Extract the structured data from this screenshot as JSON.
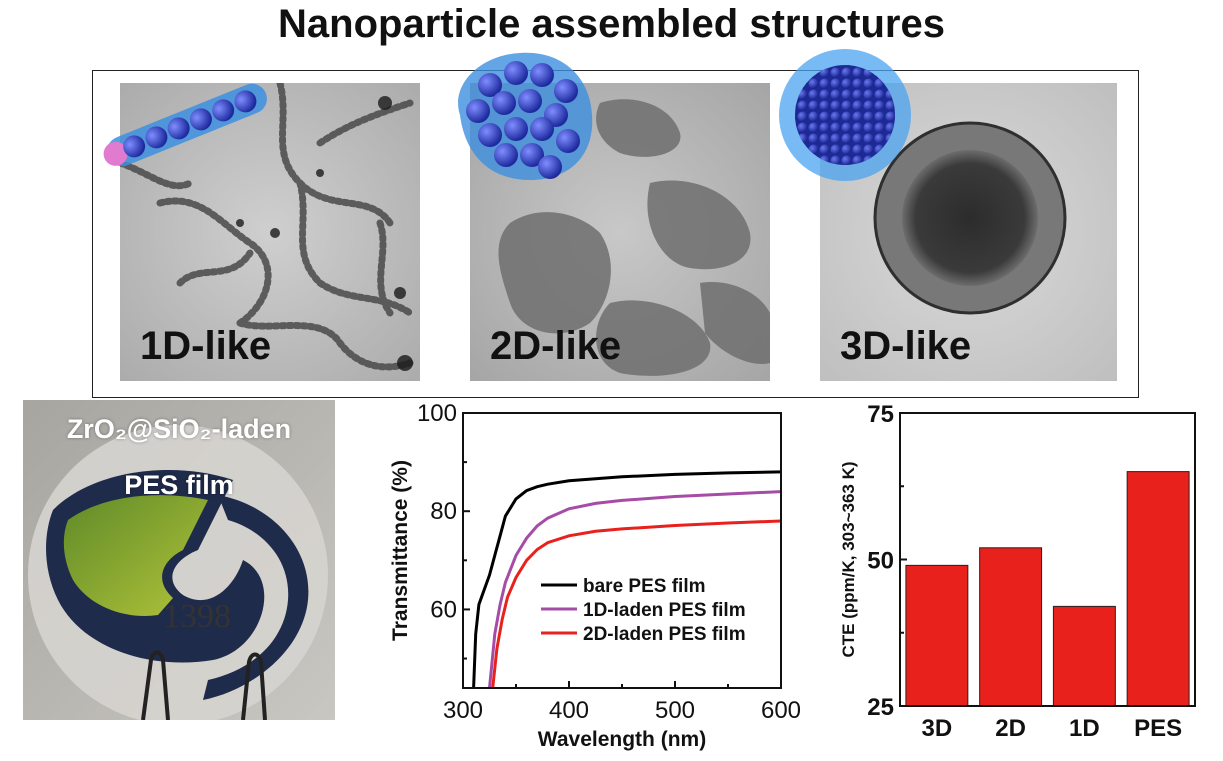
{
  "title": "Nanoparticle assembled structures",
  "panels": [
    {
      "label": "1D-like"
    },
    {
      "label": "2D-like"
    },
    {
      "label": "3D-like"
    }
  ],
  "photo": {
    "caption_line1": "ZrO₂@SiO₂-laden",
    "caption_line2": "PES film",
    "number": "1398"
  },
  "colors": {
    "bare": "#000000",
    "oneD": "#a64ca6",
    "twoD": "#e8211d",
    "bar": "#e8211d"
  },
  "chart_data": [
    {
      "type": "line",
      "xlabel": "Wavelength (nm)",
      "ylabel": "Transmittance (%)",
      "xlim": [
        300,
        600
      ],
      "ylim": [
        44,
        100
      ],
      "xticks": [
        300,
        400,
        500,
        600
      ],
      "yticks": [
        60,
        80,
        100
      ],
      "legend": "bottom-right",
      "series": [
        {
          "name": "bare PES film",
          "color": "#000000",
          "x": [
            310,
            312,
            315,
            320,
            325,
            330,
            335,
            340,
            350,
            360,
            370,
            380,
            400,
            450,
            500,
            550,
            600
          ],
          "y": [
            44,
            55,
            61,
            64,
            67,
            71,
            75,
            79,
            82.5,
            84.2,
            85,
            85.5,
            86.2,
            87,
            87.5,
            87.8,
            88
          ]
        },
        {
          "name": "1D-laden PES film",
          "color": "#a64ca6",
          "x": [
            325,
            330,
            335,
            340,
            350,
            360,
            370,
            380,
            400,
            425,
            450,
            500,
            550,
            600
          ],
          "y": [
            44,
            55,
            61,
            65.5,
            71,
            74.5,
            77,
            78.6,
            80.5,
            81.6,
            82.2,
            83,
            83.5,
            84
          ]
        },
        {
          "name": "2D-laden PES film",
          "color": "#e8211d",
          "x": [
            328,
            332,
            337,
            342,
            350,
            360,
            370,
            380,
            400,
            425,
            450,
            500,
            550,
            600
          ],
          "y": [
            44,
            52,
            58,
            62.5,
            66.5,
            70,
            72.2,
            73.6,
            75,
            75.9,
            76.4,
            77.1,
            77.6,
            78
          ]
        }
      ]
    },
    {
      "type": "bar",
      "categories": [
        "3D",
        "2D",
        "1D",
        "PES"
      ],
      "values": [
        49,
        52,
        42,
        65
      ],
      "ylabel": "CTE (ppm/K, 303~363 K)",
      "ylim": [
        25,
        75
      ],
      "yticks": [
        25,
        50,
        75
      ],
      "color": "#e8211d"
    }
  ]
}
